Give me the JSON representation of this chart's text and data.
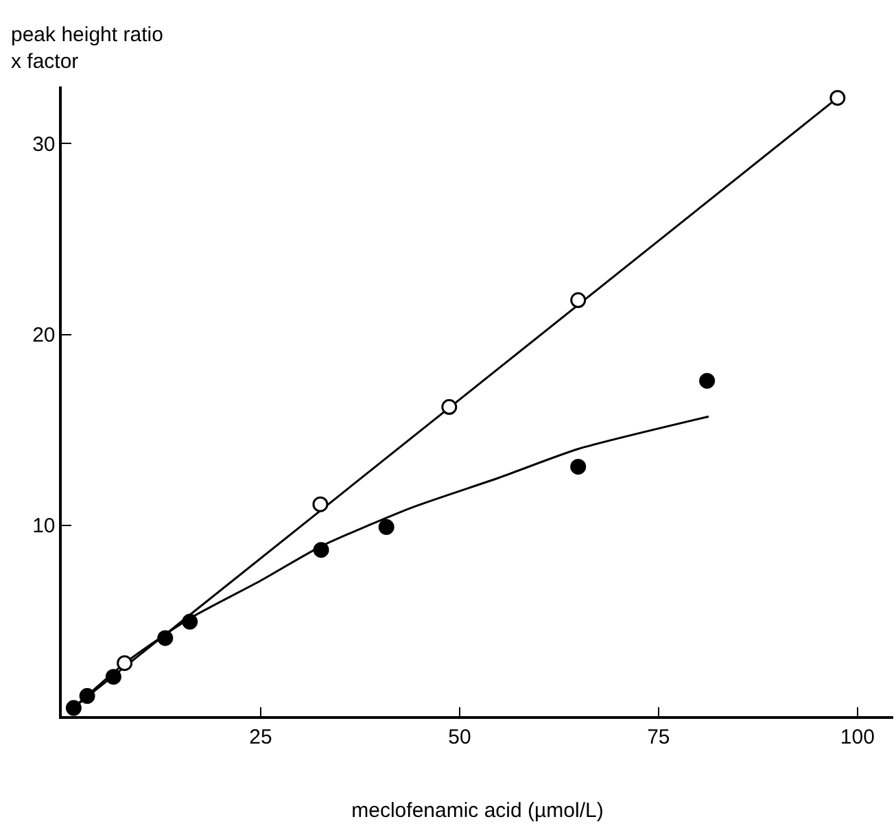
{
  "chart_data": {
    "type": "scatter",
    "xlabel": "meclofenamic acid (µmol/L)",
    "ylabel": "peak height ratio\nx factor",
    "xlim": [
      0,
      104.5
    ],
    "xticks": [
      25,
      50,
      75,
      100
    ],
    "ylim": [
      0,
      33
    ],
    "yticks": [
      10,
      20,
      30
    ],
    "grid": false,
    "legend": false,
    "marker": "circle",
    "series": [
      {
        "color": "#ffffff",
        "x": [
          7.9,
          32.5,
          48.7,
          64.9,
          97.5
        ],
        "values": [
          2.78,
          11.1,
          16.2,
          21.8,
          32.4
        ]
      },
      {
        "color": "#000000",
        "x": [
          1.5,
          3.2,
          6.5,
          13.0,
          16.1,
          32.6,
          40.8,
          64.9,
          81.1
        ],
        "values": [
          0.43,
          1.06,
          2.06,
          4.09,
          4.95,
          8.71,
          9.91,
          13.07,
          17.57
        ]
      },
      {
        "type": "line",
        "color": "#000000",
        "marker": "none",
        "x": [
          1.5,
          97.5
        ],
        "values": [
          0.45,
          32.4
        ]
      },
      {
        "type": "line",
        "color": "#000000",
        "marker": "none",
        "x": [
          1.5,
          8,
          16,
          25,
          32.6,
          43.8,
          55,
          64.9,
          81.3
        ],
        "values": [
          0.45,
          2.8,
          5.1,
          7.1,
          8.9,
          10.9,
          12.5,
          14.0,
          15.7
        ]
      }
    ]
  }
}
